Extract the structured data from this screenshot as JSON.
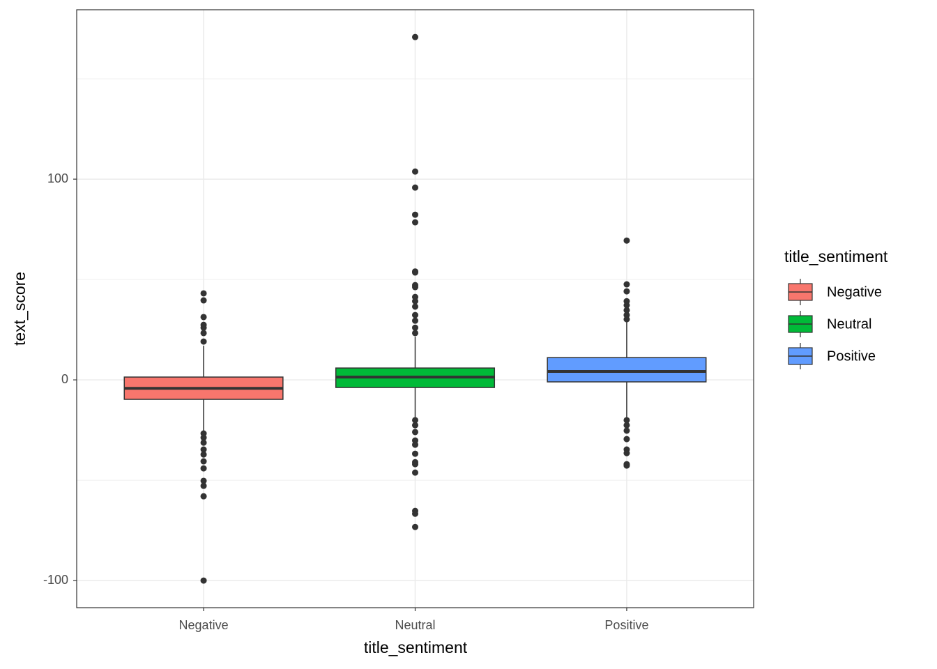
{
  "chart_data": {
    "type": "boxplot",
    "x_label": "title_sentiment",
    "y_label": "text_score",
    "legend_title": "title_sentiment",
    "legend_position": "right",
    "categories": [
      "Negative",
      "Neutral",
      "Positive"
    ],
    "ylim": [
      -113.5,
      184.4
    ],
    "yticks": [
      -100,
      0,
      100
    ],
    "minor_grid": [
      -50,
      50,
      150
    ],
    "grid": true,
    "series": [
      {
        "name": "Negative",
        "color": "#f8766d",
        "whisker_low": -26,
        "q1": -9.7,
        "median": -4.2,
        "q3": 1.4,
        "whisker_high": 17,
        "outliers": [
          43.1,
          39.6,
          31.3,
          27.4,
          26,
          23.3,
          19.1,
          -26.7,
          -28.8,
          -31.3,
          -34.7,
          -37.2,
          -40.6,
          -44.1,
          -50.3,
          -52.8,
          -58,
          -100
        ]
      },
      {
        "name": "Neutral",
        "color": "#00ba38",
        "whisker_low": -19,
        "q1": -3.8,
        "median": 1.4,
        "q3": 5.9,
        "whisker_high": 21.5,
        "outliers": [
          170.8,
          103.8,
          95.8,
          82.3,
          78.5,
          54,
          53.5,
          47.2,
          46.2,
          41.3,
          39.2,
          36.5,
          32.3,
          29.5,
          26,
          23.3,
          -20.1,
          -22.6,
          -26,
          -30.2,
          -32.3,
          -36.8,
          -41,
          -42,
          -46.2,
          -65.3,
          -66.7,
          -73.3
        ]
      },
      {
        "name": "Positive",
        "color": "#619cff",
        "whisker_low": -19,
        "q1": -1,
        "median": 4.2,
        "q3": 11.1,
        "whisker_high": 29,
        "outliers": [
          69.4,
          47.6,
          44.1,
          39.2,
          37.2,
          34.7,
          32.3,
          30.2,
          -20.1,
          -22.6,
          -25.3,
          -29.5,
          -34.7,
          -36.5,
          -42,
          -42.7
        ]
      }
    ]
  }
}
